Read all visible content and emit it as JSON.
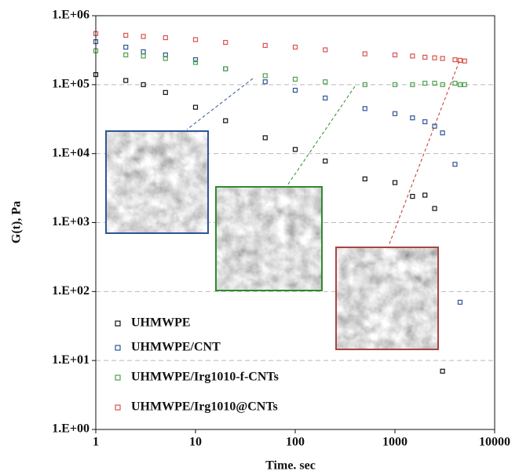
{
  "chart_data": {
    "type": "scatter",
    "x_label": "Time. sec",
    "y_label": "G(t), Pa",
    "x_log": true,
    "y_log": true,
    "grid": true,
    "legend": "lower-left",
    "xlim": [
      1,
      10000
    ],
    "xticks": [
      1,
      10,
      100,
      1000,
      10000
    ],
    "ylim": [
      1,
      1000000
    ],
    "yticks": [
      {
        "value": 1,
        "label": "1.E+00"
      },
      {
        "value": 10,
        "label": "1.E+01"
      },
      {
        "value": 100,
        "label": "1.E+02"
      },
      {
        "value": 1000,
        "label": "1.E+03"
      },
      {
        "value": 10000,
        "label": "1.E+04"
      },
      {
        "value": 100000,
        "label": "1.E+05"
      },
      {
        "value": 1000000,
        "label": "1.E+06"
      }
    ],
    "x": [
      1,
      2,
      3,
      5,
      10,
      20,
      50,
      100,
      200,
      500,
      1000,
      1500,
      2000,
      2500,
      3000,
      4000,
      4500,
      5000
    ],
    "series": [
      {
        "name": "UHMWPE",
        "color": "#111111",
        "values": [
          140000,
          115000,
          100000,
          77000,
          47000,
          30000,
          17000,
          11500,
          7800,
          4300,
          3800,
          2400,
          2500,
          1600,
          7,
          null,
          null,
          null
        ]
      },
      {
        "name": "UHMWPE/CNT",
        "color": "#2f5597",
        "values": [
          420000,
          350000,
          300000,
          270000,
          230000,
          170000,
          110000,
          83000,
          64000,
          45000,
          38000,
          33000,
          29000,
          25000,
          20000,
          7000,
          70,
          null
        ]
      },
      {
        "name": "UHMWPE/Irg1010-f-CNTs",
        "color": "#4ea24e",
        "values": [
          310000,
          270000,
          260000,
          240000,
          210000,
          170000,
          135000,
          120000,
          110000,
          100000,
          100000,
          100000,
          105000,
          105000,
          100000,
          105000,
          100000,
          100000
        ]
      },
      {
        "name": "UHMWPE/Irg1010@CNTs",
        "color": "#d9534f",
        "values": [
          550000,
          520000,
          500000,
          480000,
          450000,
          410000,
          370000,
          350000,
          320000,
          280000,
          270000,
          260000,
          250000,
          245000,
          240000,
          230000,
          225000,
          220000
        ]
      }
    ]
  }
}
